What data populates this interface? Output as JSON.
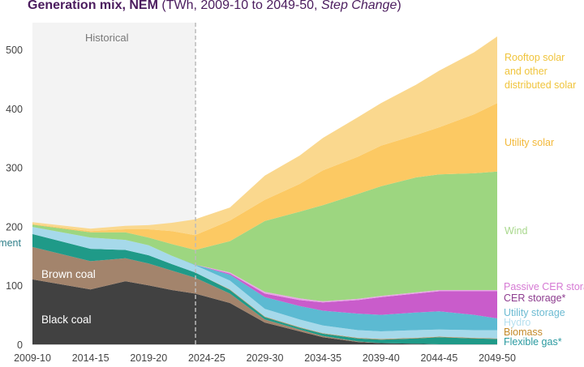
{
  "chart_data": {
    "type": "area",
    "stacked": true,
    "title": "Generation mix, NEM",
    "subtitle_prefix": "(TWh, 2009-10 to 2049-50, ",
    "subtitle_italic": "Step Change",
    "subtitle_suffix": ")",
    "xlabel": "",
    "ylabel": "",
    "ylim": [
      0,
      500
    ],
    "yticks": [
      "0",
      "100",
      "200",
      "300",
      "400",
      "500"
    ],
    "xticks": [
      "2009-10",
      "2014-15",
      "2019-20",
      "2024-25",
      "2029-30",
      "2034-35",
      "2039-40",
      "2044-45",
      "2049-50"
    ],
    "historical_label": "Historical",
    "historical_end": "2023-24",
    "grid": false,
    "x": [
      "2009-10",
      "2014-15",
      "2017-18",
      "2019-20",
      "2021-22",
      "2023-24",
      "2026-27",
      "2029-30",
      "2032-33",
      "2034-35",
      "2037-38",
      "2039-40",
      "2042-43",
      "2044-45",
      "2047-48",
      "2049-50"
    ],
    "series": [
      {
        "name": "Black coal",
        "color": "#414141",
        "values": [
          110,
          93,
          107,
          100,
          92,
          86,
          70,
          37,
          22,
          12,
          4,
          2,
          1,
          0,
          0,
          0
        ]
      },
      {
        "name": "Brown coal",
        "color": "#a3846c",
        "values": [
          55,
          48,
          39,
          37,
          33,
          27,
          16,
          5,
          3,
          2,
          1,
          0,
          0,
          0,
          0,
          0
        ]
      },
      {
        "name": "Flexible gas*",
        "color": "#1f9a88",
        "values": [
          22,
          21,
          14,
          14,
          11,
          9,
          6,
          4,
          3,
          4,
          5,
          6,
          9,
          12,
          10,
          9
        ]
      },
      {
        "name": "Biomass",
        "color": "#b98e5a",
        "values": [
          0,
          0,
          0,
          0,
          0,
          0,
          1,
          1,
          1,
          1,
          1,
          1,
          1,
          1,
          1,
          1
        ]
      },
      {
        "name": "Hydro",
        "color": "#a6d9ea",
        "values": [
          12,
          19,
          17,
          17,
          14,
          12,
          15,
          13,
          13,
          13,
          13,
          13,
          13,
          12,
          13,
          14
        ]
      },
      {
        "name": "Utility storage",
        "color": "#5cbad2",
        "values": [
          0,
          0,
          0,
          0,
          0,
          1,
          10,
          20,
          23,
          25,
          28,
          28,
          30,
          31,
          26,
          20
        ]
      },
      {
        "name": "CER storage*",
        "color": "#c95ccb",
        "values": [
          0,
          0,
          0,
          0,
          0,
          0,
          2,
          6,
          10,
          14,
          23,
          30,
          32,
          34,
          40,
          46
        ]
      },
      {
        "name": "Passive CER storage",
        "color": "#e7a6e4",
        "values": [
          0,
          0,
          0,
          0,
          0,
          0,
          2,
          3,
          3,
          2,
          2,
          2,
          2,
          2,
          2,
          2
        ]
      },
      {
        "name": "Wind",
        "color": "#9dd680",
        "values": [
          4,
          9,
          13,
          13,
          20,
          25,
          53,
          120,
          147,
          163,
          178,
          186,
          195,
          196,
          198,
          201
        ]
      },
      {
        "name": "Utility solar",
        "color": "#fcc963",
        "values": [
          1,
          2,
          5,
          14,
          22,
          25,
          35,
          36,
          47,
          59,
          63,
          69,
          72,
          80,
          100,
          116
        ]
      },
      {
        "name": "Rooftop solar and other distributed solar",
        "color": "#fad88e",
        "values": [
          3,
          4,
          6,
          7,
          14,
          27,
          22,
          41,
          48,
          55,
          67,
          72,
          85,
          96,
          105,
          113
        ]
      }
    ],
    "labels": {
      "rooftop": [
        "Rooftop solar",
        "and other",
        "distributed solar"
      ],
      "utility_solar": "Utility solar",
      "wind": "Wind",
      "passive_cer": "Passive CER storage",
      "cer_storage": "CER storage*",
      "utility_storage": "Utility storage",
      "hydro": "Hydro",
      "biomass": "Biomass",
      "flexible_gas": "Flexible gas*",
      "brown_coal": "Brown coal",
      "black_coal": "Black coal",
      "left_cut": "-ment"
    },
    "label_colors": {
      "rooftop": "#f0c43c",
      "utility_solar": "#f3b93a",
      "wind": "#a9d88d",
      "passive_cer": "#d67ad4",
      "cer_storage": "#8d3c8f",
      "utility_storage": "#6cbbd2",
      "hydro": "#b6e0ef",
      "biomass": "#c48a2a",
      "flexible_gas": "#2a9aa0",
      "left_cut": "#2f7f8a"
    }
  }
}
